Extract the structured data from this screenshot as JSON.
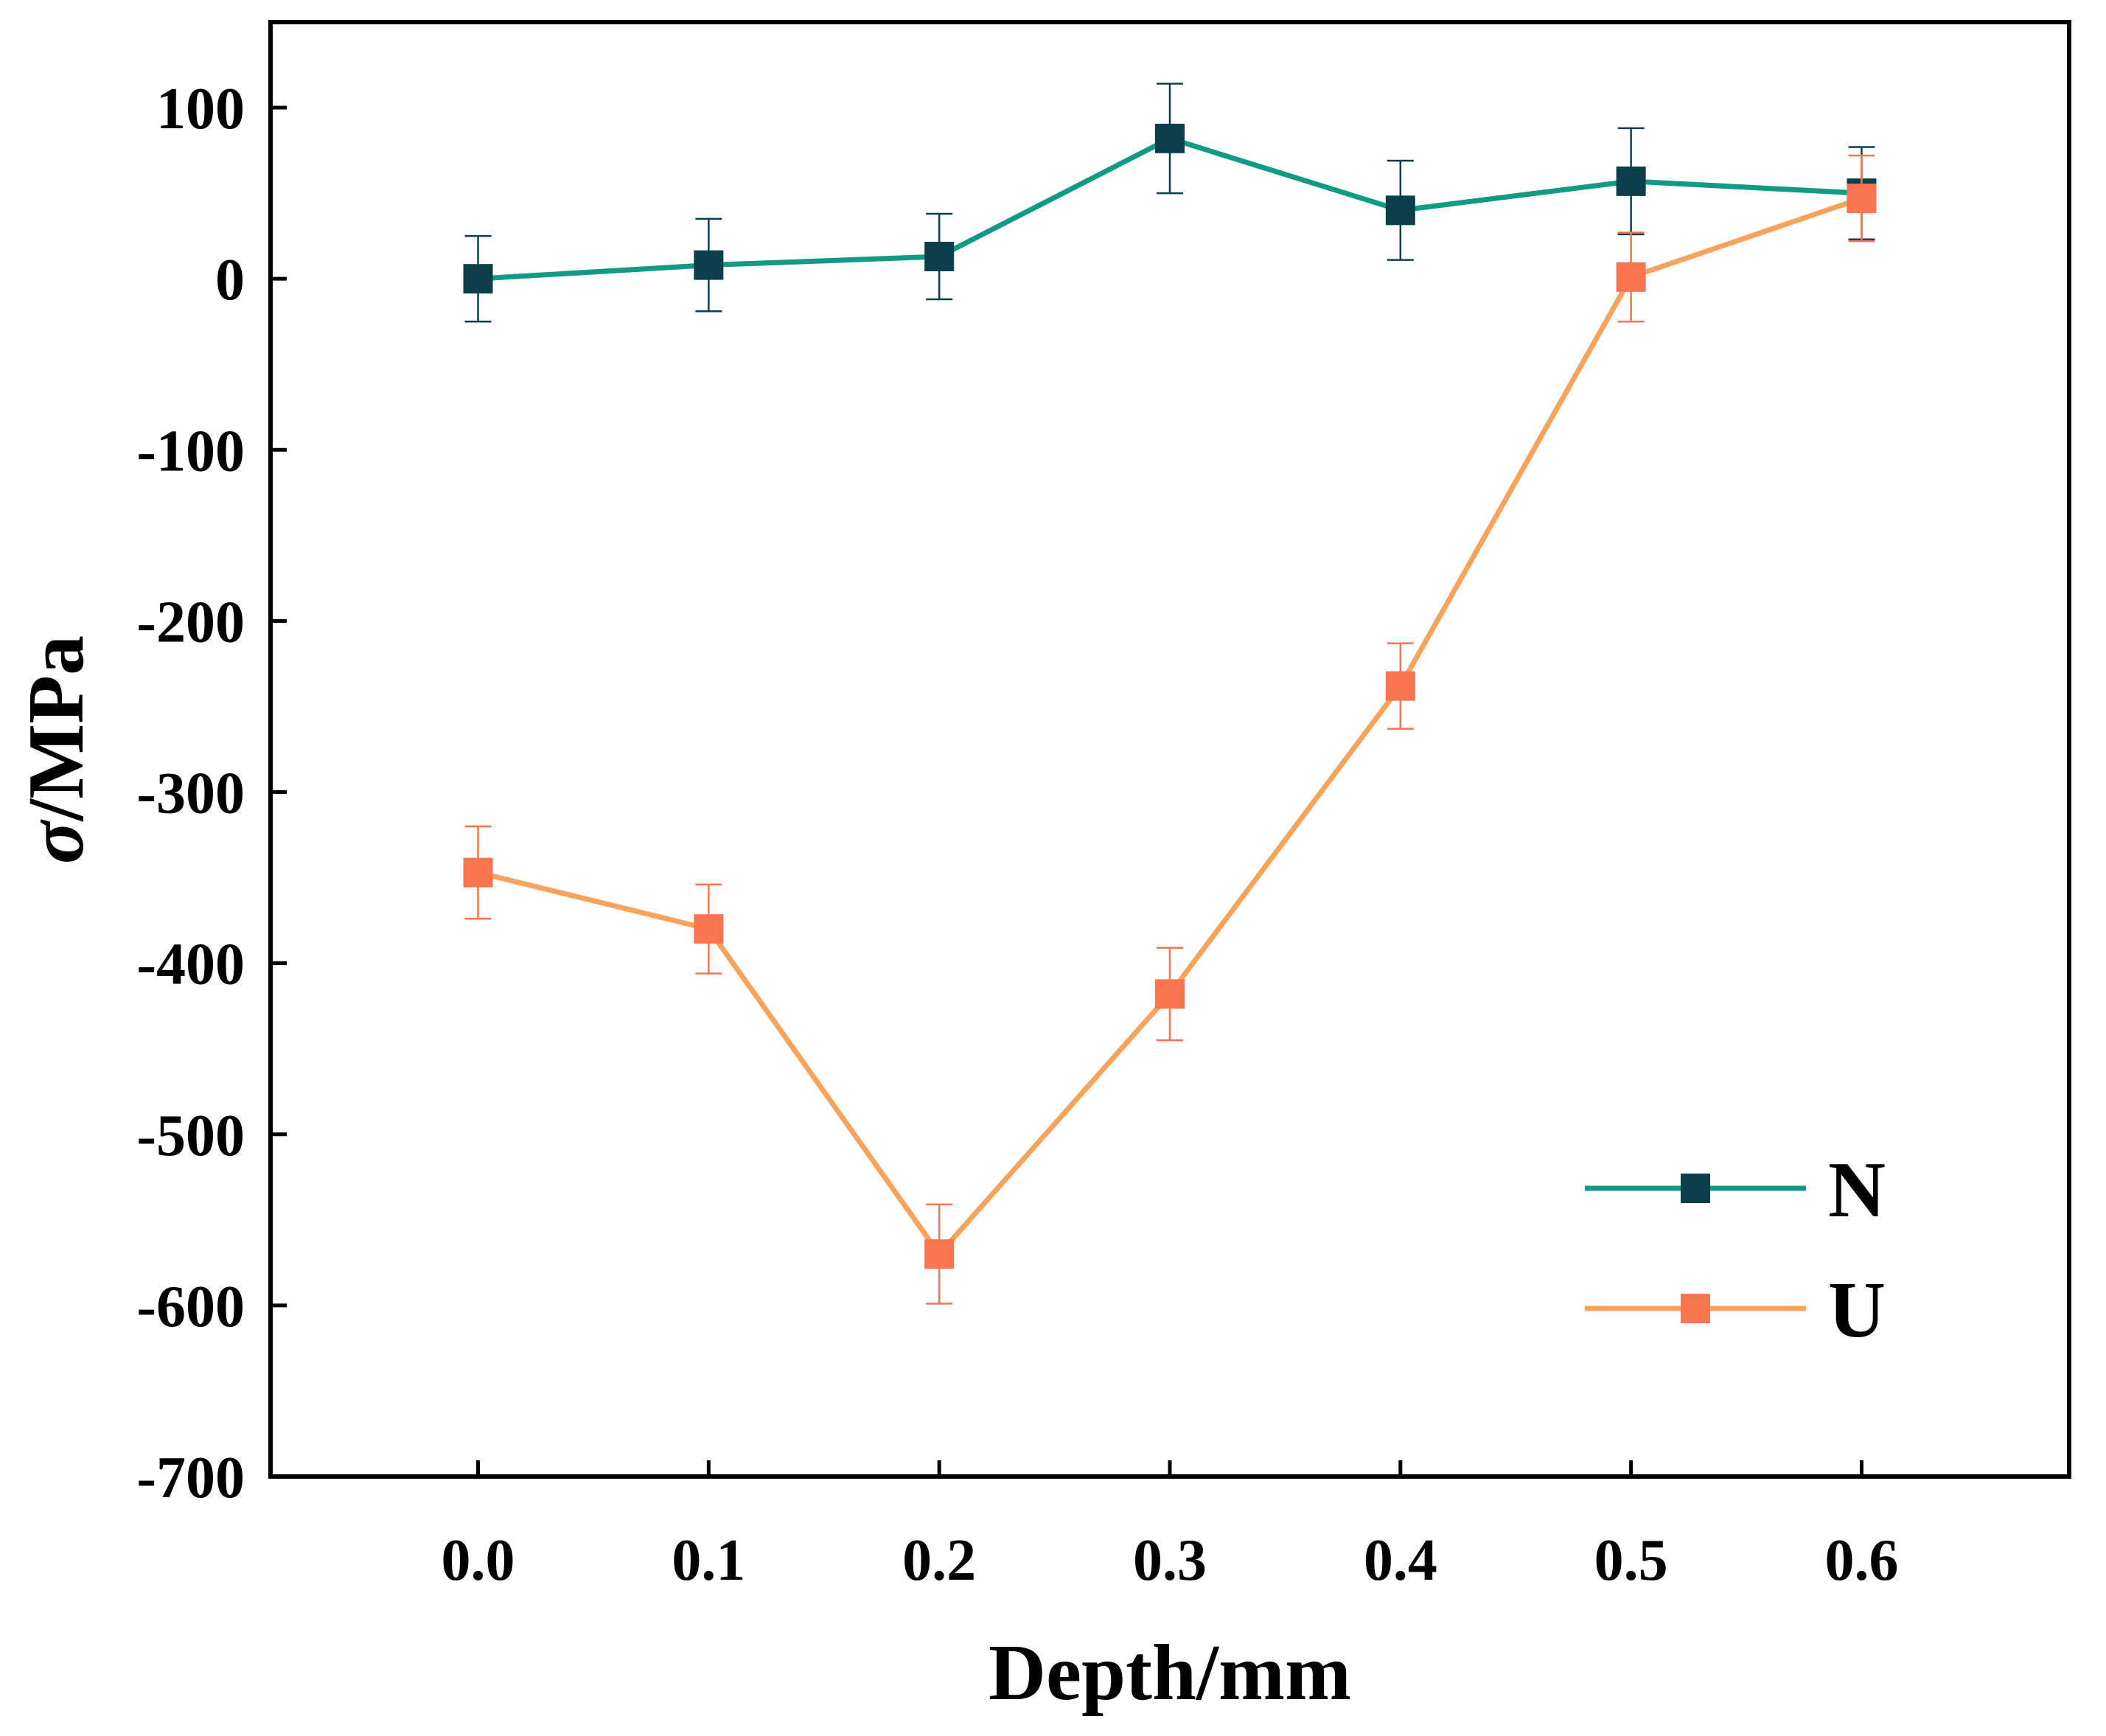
{
  "chart_data": {
    "type": "line",
    "xlabel": "Depth/mm",
    "ylabel_symbol": "σ",
    "ylabel_unit": "/MPa",
    "xlim": [
      -0.09,
      0.69
    ],
    "ylim": [
      -700,
      150
    ],
    "x_ticks": [
      "0.0",
      "0.1",
      "0.2",
      "0.3",
      "0.4",
      "0.5",
      "0.6"
    ],
    "y_ticks": [
      "100",
      "0",
      "-100",
      "-200",
      "-300",
      "-400",
      "-500",
      "-600",
      "-700"
    ],
    "x": [
      0.0,
      0.1,
      0.2,
      0.3,
      0.4,
      0.5,
      0.6
    ],
    "grid": false,
    "legend_position": "bottom-right",
    "series": [
      {
        "name": "N",
        "line_color": "#129b82",
        "marker_color": "#0b3f4c",
        "values": [
          0,
          8,
          13,
          82,
          40,
          57,
          50
        ],
        "error": [
          25,
          27,
          25,
          32,
          29,
          31,
          27
        ]
      },
      {
        "name": "U",
        "line_color": "#f7a35c",
        "marker_color": "#f87550",
        "values": [
          -347,
          -380,
          -570,
          -418,
          -238,
          1,
          47
        ],
        "error": [
          27,
          26,
          29,
          27,
          25,
          26,
          25
        ]
      }
    ]
  }
}
